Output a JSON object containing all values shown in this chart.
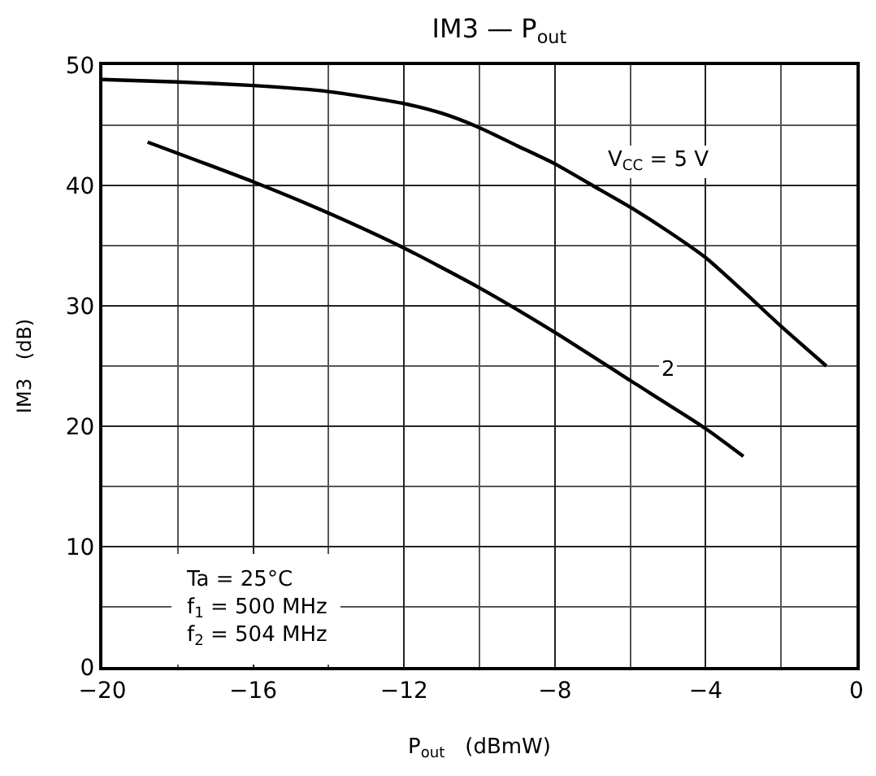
{
  "chart_data": {
    "type": "line",
    "title": "IM3 — P$_{out}$",
    "xlabel": "P$_{out}$   (dBmW)",
    "ylabel": "IM3   (dB)",
    "xlim": [
      -20,
      0
    ],
    "xticks": [
      {
        "value": -20,
        "label": "−20"
      },
      {
        "value": -16,
        "label": "−16"
      },
      {
        "value": -12,
        "label": "−12"
      },
      {
        "value": -8,
        "label": "−8"
      },
      {
        "value": -4,
        "label": "−4"
      },
      0
    ],
    "ylim": [
      0,
      50
    ],
    "yticks": [
      0,
      10,
      20,
      30,
      40,
      50
    ],
    "grid": true,
    "legend": false,
    "marker": "none",
    "line_style": "solid",
    "series": [
      {
        "name": "V$_{CC}$ = 5 V",
        "color": "#000000",
        "x": [
          -20,
          -18,
          -16,
          -14,
          -12,
          -11,
          -10,
          -9,
          -8,
          -7,
          -6,
          -5,
          -4,
          -3,
          -2,
          -0.8
        ],
        "values": [
          48.8,
          48.6,
          48.3,
          47.8,
          46.8,
          46.0,
          44.8,
          43.3,
          41.8,
          40.0,
          38.2,
          36.2,
          34.0,
          31.2,
          28.3,
          25.0
        ]
      },
      {
        "name": "2",
        "color": "#000000",
        "x": [
          -18.8,
          -16,
          -14,
          -12,
          -10,
          -8,
          -6,
          -4,
          -3
        ],
        "values": [
          43.6,
          40.3,
          37.7,
          34.8,
          31.5,
          27.8,
          23.8,
          19.8,
          17.5
        ]
      }
    ],
    "annotations": [
      "Ta = 25°C",
      "f$_{1}$ = 500 MHz",
      "f$_{2}$ = 504 MHz"
    ]
  }
}
